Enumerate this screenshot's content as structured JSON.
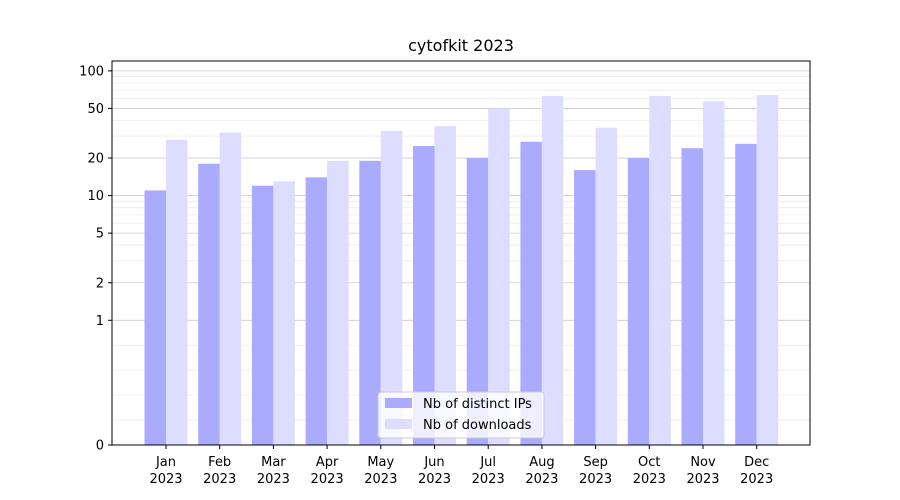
{
  "chart_data": {
    "type": "bar",
    "title": "cytofkit 2023",
    "xlabel": "",
    "ylabel": "",
    "y_scale": "symlog",
    "ylim": [
      0,
      120
    ],
    "y_ticks": [
      0,
      1,
      2,
      5,
      10,
      20,
      50,
      100
    ],
    "grid": true,
    "legend_position": "bottom-center",
    "categories": [
      [
        "Jan",
        "2023"
      ],
      [
        "Feb",
        "2023"
      ],
      [
        "Mar",
        "2023"
      ],
      [
        "Apr",
        "2023"
      ],
      [
        "May",
        "2023"
      ],
      [
        "Jun",
        "2023"
      ],
      [
        "Jul",
        "2023"
      ],
      [
        "Aug",
        "2023"
      ],
      [
        "Sep",
        "2023"
      ],
      [
        "Oct",
        "2023"
      ],
      [
        "Nov",
        "2023"
      ],
      [
        "Dec",
        "2023"
      ]
    ],
    "series": [
      {
        "name": "Nb of distinct IPs",
        "color": "#aaaaff",
        "values": [
          11,
          18,
          12,
          14,
          19,
          25,
          20,
          27,
          16,
          20,
          24,
          26
        ]
      },
      {
        "name": "Nb of downloads",
        "color": "#ddddff",
        "values": [
          28,
          32,
          13,
          19,
          33,
          36,
          50,
          63,
          35,
          63,
          57,
          64
        ]
      }
    ]
  }
}
